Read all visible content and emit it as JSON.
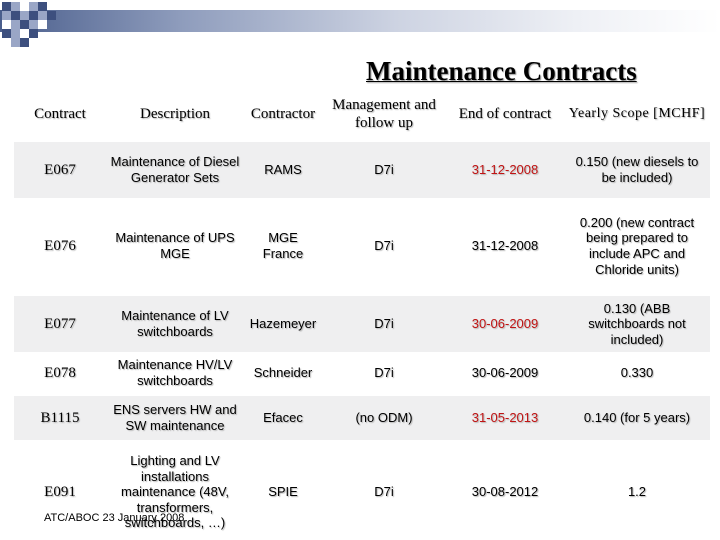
{
  "title": "Maintenance Contracts",
  "headers": [
    "Contract",
    "Description",
    "Contractor",
    "Management and follow up",
    "End of contract",
    "Yearly Scope [MCHF]"
  ],
  "rows": [
    {
      "contract": "E067",
      "description": "Maintenance of Diesel Generator Sets",
      "contractor": "RAMS",
      "management": "D7i",
      "end": "31-12-2008",
      "end_red": true,
      "scope": "0.150 (new diesels to be included)"
    },
    {
      "contract": "E076",
      "description": "Maintenance of UPS MGE",
      "contractor": "MGE France",
      "management": "D7i",
      "end": "31-12-2008",
      "end_red": false,
      "scope": "0.200 (new contract being prepared to include APC and Chloride units)"
    },
    {
      "contract": "E077",
      "description": "Maintenance of LV switchboards",
      "contractor": "Hazemeyer",
      "management": "D7i",
      "end": "30-06-2009",
      "end_red": true,
      "scope": "0.130 (ABB switchboards not included)"
    },
    {
      "contract": "E078",
      "description": "Maintenance HV/LV switchboards",
      "contractor": "Schneider",
      "management": "D7i",
      "end": "30-06-2009",
      "end_red": false,
      "scope": "0.330"
    },
    {
      "contract": "B1115",
      "description": "ENS servers HW and SW maintenance",
      "contractor": "Efacec",
      "management": "(no ODM)",
      "end": "31-05-2013",
      "end_red": true,
      "scope": "0.140 (for 5 years)"
    },
    {
      "contract": "E091",
      "description": "Lighting and LV installations maintenance (48V, transformers, switchboards, …)",
      "contractor": "SPIE",
      "management": "D7i",
      "end": "30-08-2012",
      "end_red": false,
      "scope": "1.2"
    }
  ],
  "footer": "ATC/ABOC 23 January 2008"
}
